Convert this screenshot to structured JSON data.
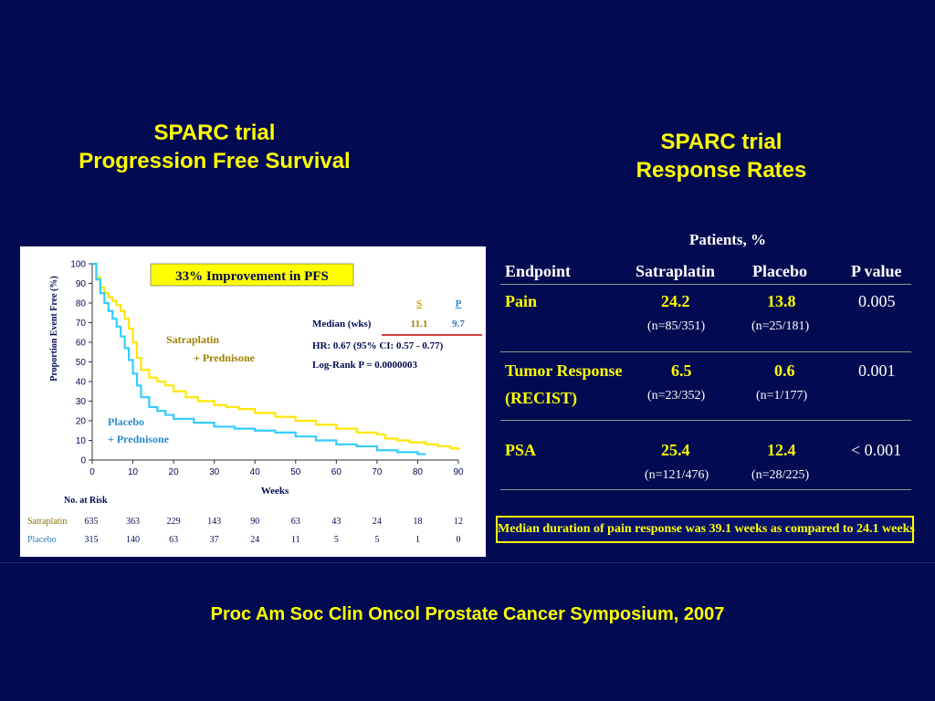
{
  "pfs_title": {
    "line1": "SPARC trial",
    "line2": "Progression Free Survival"
  },
  "rr_title": {
    "line1": "SPARC trial",
    "line2": "Response Rates"
  },
  "footer": "Proc Am Soc Clin Oncol Prostate Cancer Symposium, 2007",
  "chart_data": {
    "type": "line",
    "ylabel": "Proportion Event Free (%)",
    "xlabel": "Weeks",
    "xlim": [
      0,
      90
    ],
    "ylim": [
      0,
      100
    ],
    "x_ticks": [
      "0",
      "10",
      "20",
      "30",
      "40",
      "50",
      "60",
      "70",
      "80",
      "90"
    ],
    "y_ticks": [
      "0",
      "10",
      "20",
      "30",
      "40",
      "50",
      "60",
      "70",
      "80",
      "90",
      "100"
    ],
    "improvement_box": "33% Improvement in PFS",
    "stats": {
      "col_s": "S",
      "col_p": "P",
      "median_label": "Median (wks)",
      "median_s": "11.1",
      "median_p": "9.7",
      "hr": "HR: 0.67 (95% CI: 0.57 - 0.77)",
      "logrank": "Log-Rank P = 0.0000003"
    },
    "series": [
      {
        "name_line1": "Satraplatin",
        "name_line2": "+ Prednisone",
        "color": "#FFE600",
        "x": [
          0,
          1,
          2,
          3,
          4,
          5,
          6,
          7,
          8,
          9,
          10,
          11,
          12,
          14,
          16,
          18,
          20,
          23,
          26,
          30,
          33,
          36,
          40,
          45,
          50,
          55,
          60,
          65,
          70,
          72,
          75,
          78,
          80,
          82,
          85,
          88,
          90
        ],
        "y": [
          100,
          93,
          88,
          85,
          83,
          81,
          79,
          76,
          72,
          67,
          60,
          52,
          46,
          42,
          40,
          38,
          35,
          32,
          30,
          28,
          27,
          26,
          24,
          22,
          20,
          18,
          16,
          14,
          13,
          11,
          10,
          9,
          9,
          8,
          7,
          6,
          5
        ]
      },
      {
        "name_line1": "Placebo",
        "name_line2": "+ Prednisone",
        "color": "#33CCFF",
        "x": [
          0,
          1,
          2,
          3,
          4,
          5,
          6,
          7,
          8,
          9,
          10,
          11,
          12,
          14,
          16,
          18,
          20,
          25,
          30,
          35,
          40,
          45,
          50,
          55,
          60,
          65,
          70,
          75,
          80,
          82
        ],
        "y": [
          100,
          92,
          85,
          80,
          76,
          72,
          68,
          63,
          57,
          51,
          44,
          38,
          32,
          27,
          25,
          23,
          21,
          19,
          17,
          16,
          15,
          14,
          12,
          10,
          8,
          7,
          5,
          4,
          3,
          3
        ]
      }
    ],
    "risk_table": {
      "title": "No. at Risk",
      "rows": [
        {
          "label": "Satraplatin",
          "values": [
            "635",
            "363",
            "229",
            "143",
            "90",
            "63",
            "43",
            "24",
            "18",
            "12"
          ],
          "color": "#FFFF00"
        },
        {
          "label": "Placebo",
          "values": [
            "315",
            "140",
            "63",
            "37",
            "24",
            "11",
            "5",
            "5",
            "1",
            "0"
          ],
          "color": "#33CCFF"
        }
      ]
    }
  },
  "response_table": {
    "super_header": "Patients, %",
    "headers": [
      "Endpoint",
      "Satraplatin",
      "Placebo",
      "P value"
    ],
    "rows": [
      {
        "endpoint1": "Pain",
        "endpoint2": "",
        "satraplatin": "24.2",
        "sat_n": "(n=85/351)",
        "placebo": "13.8",
        "plac_n": "(n=25/181)",
        "p": "0.005"
      },
      {
        "endpoint1": "Tumor Response",
        "endpoint2": "(RECIST)",
        "satraplatin": "6.5",
        "sat_n": "(n=23/352)",
        "placebo": "0.6",
        "plac_n": "(n=1/177)",
        "p": "0.001"
      },
      {
        "endpoint1": "PSA",
        "endpoint2": "",
        "satraplatin": "25.4",
        "sat_n": "(n=121/476)",
        "placebo": "12.4",
        "plac_n": "(n=28/225)",
        "p": "< 0.001"
      }
    ],
    "note": "Median duration of pain response was 39.1 weeks as compared to 24.1 weeks"
  }
}
